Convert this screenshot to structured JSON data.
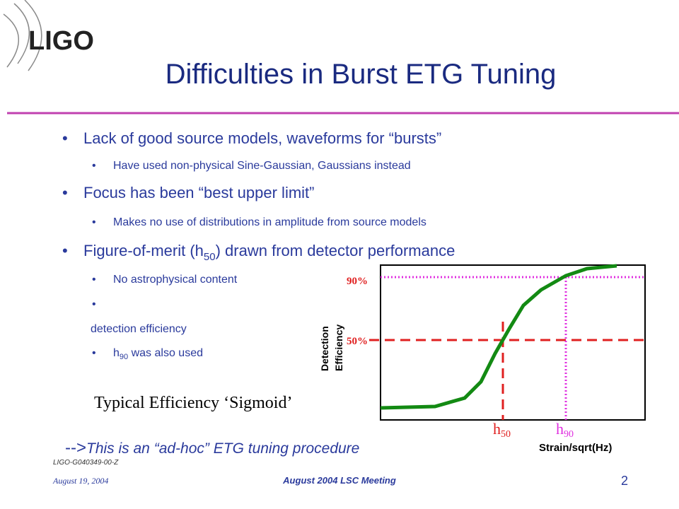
{
  "logo": "LIGO",
  "title": "Difficulties in Burst ETG Tuning",
  "bullets": [
    {
      "text": "Lack of good source models, waveforms for “bursts”",
      "sub": [
        "Have used non-physical Sine-Gaussian, Gaussians instead"
      ]
    },
    {
      "text": "Focus has been “best upper limit”",
      "sub": [
        "Makes no use of distributions in amplitude from source models"
      ]
    },
    {
      "before": "Figure-of-merit (h",
      "subscript": "50",
      "after": ") drawn from detector performance",
      "sub": [
        "No astrophysical content"
      ]
    }
  ],
  "fragment": "detection efficiency",
  "h90_item": {
    "before": "h",
    "subscript": "90",
    "after": " was also used"
  },
  "figure": {
    "y_label_1": "Detection",
    "y_label_2": "Efficiency",
    "label_90": "90%",
    "label_50": "50%",
    "h50": {
      "base": "h",
      "subscript": "50"
    },
    "h90": {
      "base": "h",
      "subscript": "90"
    },
    "x_label": "Strain/sqrt(Hz)",
    "caption": "Typical Efficiency ‘Sigmoid’"
  },
  "note": {
    "arrow": "-->",
    "text": "This is an “ad-hoc” ETG tuning procedure"
  },
  "doc_id": "LIGO-G040349-00-Z",
  "footer": {
    "date": "August 19, 2004",
    "meeting": "August 2004 LSC Meeting",
    "page": "2"
  }
}
